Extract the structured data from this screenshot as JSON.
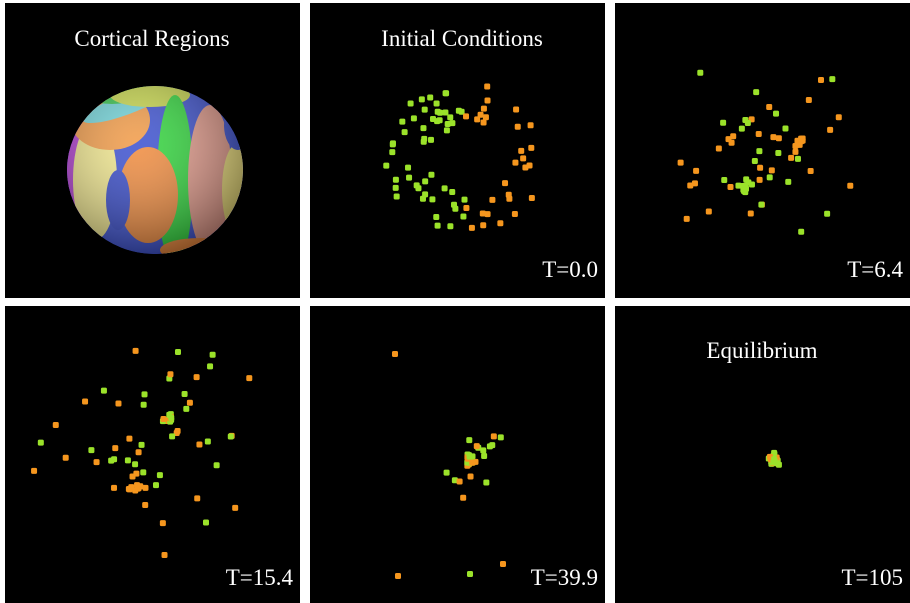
{
  "panels": [
    {
      "title": "Cortical Regions"
    },
    {
      "title": "Initial Conditions",
      "time": "T=0.0"
    },
    {
      "time": "T=6.4"
    },
    {
      "time": "T=15.4"
    },
    {
      "time": "T=39.9"
    },
    {
      "title": "Equilibrium",
      "time": "T=105"
    }
  ]
}
